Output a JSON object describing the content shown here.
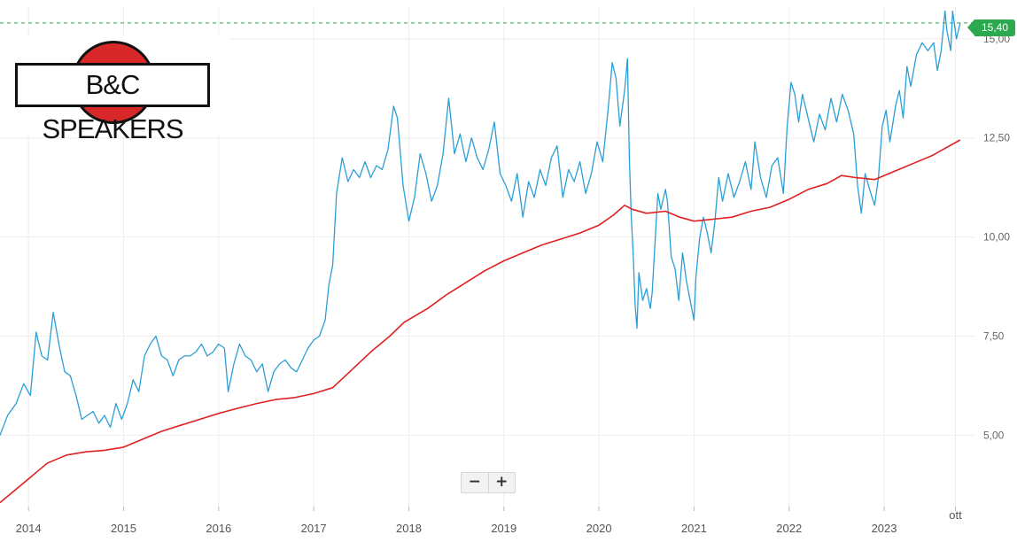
{
  "logo": {
    "text": "B&C SPEAKERS"
  },
  "zoom": {
    "minus_label": "−",
    "plus_label": "+"
  },
  "last_price_label": "15,40",
  "colors": {
    "price_line": "#2b9ed6",
    "moving_average": "#e02020",
    "last_price_dashed": "#2ca94f",
    "grid": "#eeeeee"
  },
  "chart_data": {
    "type": "line",
    "title": "",
    "xlabel": "",
    "ylabel": "",
    "ylim": [
      3.2,
      15.8
    ],
    "xlim": [
      2013.7,
      2023.95
    ],
    "y_ticks": [
      5,
      7.5,
      10,
      12.5,
      15
    ],
    "y_tick_labels": [
      "5,00",
      "7,50",
      "10,00",
      "12,50",
      "15,00"
    ],
    "x_ticks": [
      2014,
      2015,
      2016,
      2017,
      2018,
      2019,
      2020,
      2021,
      2022,
      2023,
      2023.75
    ],
    "x_tick_labels": [
      "2014",
      "2015",
      "2016",
      "2017",
      "2018",
      "2019",
      "2020",
      "2021",
      "2022",
      "2023",
      "ott"
    ],
    "grid": true,
    "last_price": 15.4,
    "series": [
      {
        "name": "",
        "color": "#2b9ed6",
        "points": [
          [
            2013.7,
            5.0
          ],
          [
            2013.78,
            5.5
          ],
          [
            2013.87,
            5.8
          ],
          [
            2013.95,
            6.3
          ],
          [
            2014.02,
            6.0
          ],
          [
            2014.08,
            7.6
          ],
          [
            2014.14,
            7.0
          ],
          [
            2014.2,
            6.9
          ],
          [
            2014.26,
            8.1
          ],
          [
            2014.32,
            7.3
          ],
          [
            2014.38,
            6.6
          ],
          [
            2014.44,
            6.5
          ],
          [
            2014.5,
            6.0
          ],
          [
            2014.56,
            5.4
          ],
          [
            2014.62,
            5.5
          ],
          [
            2014.68,
            5.6
          ],
          [
            2014.74,
            5.3
          ],
          [
            2014.8,
            5.5
          ],
          [
            2014.86,
            5.2
          ],
          [
            2014.92,
            5.8
          ],
          [
            2014.98,
            5.4
          ],
          [
            2015.04,
            5.8
          ],
          [
            2015.1,
            6.4
          ],
          [
            2015.16,
            6.1
          ],
          [
            2015.22,
            7.0
          ],
          [
            2015.28,
            7.3
          ],
          [
            2015.34,
            7.5
          ],
          [
            2015.4,
            7.0
          ],
          [
            2015.46,
            6.9
          ],
          [
            2015.52,
            6.5
          ],
          [
            2015.58,
            6.9
          ],
          [
            2015.64,
            7.0
          ],
          [
            2015.7,
            7.0
          ],
          [
            2015.76,
            7.1
          ],
          [
            2015.82,
            7.3
          ],
          [
            2015.88,
            7.0
          ],
          [
            2015.94,
            7.1
          ],
          [
            2016.0,
            7.3
          ],
          [
            2016.06,
            7.2
          ],
          [
            2016.1,
            6.1
          ],
          [
            2016.16,
            6.8
          ],
          [
            2016.22,
            7.3
          ],
          [
            2016.28,
            7.0
          ],
          [
            2016.34,
            6.9
          ],
          [
            2016.4,
            6.6
          ],
          [
            2016.46,
            6.8
          ],
          [
            2016.52,
            6.1
          ],
          [
            2016.58,
            6.6
          ],
          [
            2016.64,
            6.8
          ],
          [
            2016.7,
            6.9
          ],
          [
            2016.76,
            6.7
          ],
          [
            2016.82,
            6.6
          ],
          [
            2016.88,
            6.9
          ],
          [
            2016.94,
            7.2
          ],
          [
            2017.0,
            7.4
          ],
          [
            2017.06,
            7.5
          ],
          [
            2017.12,
            7.9
          ],
          [
            2017.16,
            8.8
          ],
          [
            2017.2,
            9.3
          ],
          [
            2017.24,
            11.1
          ],
          [
            2017.3,
            12.0
          ],
          [
            2017.36,
            11.4
          ],
          [
            2017.42,
            11.7
          ],
          [
            2017.48,
            11.5
          ],
          [
            2017.54,
            11.9
          ],
          [
            2017.6,
            11.5
          ],
          [
            2017.66,
            11.8
          ],
          [
            2017.72,
            11.7
          ],
          [
            2017.78,
            12.2
          ],
          [
            2017.84,
            13.3
          ],
          [
            2017.88,
            13.0
          ],
          [
            2017.94,
            11.3
          ],
          [
            2018.0,
            10.4
          ],
          [
            2018.06,
            11.0
          ],
          [
            2018.12,
            12.1
          ],
          [
            2018.18,
            11.6
          ],
          [
            2018.24,
            10.9
          ],
          [
            2018.3,
            11.3
          ],
          [
            2018.36,
            12.1
          ],
          [
            2018.42,
            13.5
          ],
          [
            2018.48,
            12.1
          ],
          [
            2018.54,
            12.6
          ],
          [
            2018.6,
            11.9
          ],
          [
            2018.66,
            12.5
          ],
          [
            2018.72,
            12.0
          ],
          [
            2018.78,
            11.7
          ],
          [
            2018.84,
            12.2
          ],
          [
            2018.9,
            12.9
          ],
          [
            2018.96,
            11.6
          ],
          [
            2019.02,
            11.3
          ],
          [
            2019.08,
            10.9
          ],
          [
            2019.14,
            11.6
          ],
          [
            2019.2,
            10.5
          ],
          [
            2019.26,
            11.4
          ],
          [
            2019.32,
            11.0
          ],
          [
            2019.38,
            11.7
          ],
          [
            2019.44,
            11.3
          ],
          [
            2019.5,
            12.0
          ],
          [
            2019.56,
            12.3
          ],
          [
            2019.62,
            11.0
          ],
          [
            2019.68,
            11.7
          ],
          [
            2019.74,
            11.4
          ],
          [
            2019.8,
            11.9
          ],
          [
            2019.86,
            11.1
          ],
          [
            2019.92,
            11.6
          ],
          [
            2019.98,
            12.4
          ],
          [
            2020.04,
            11.9
          ],
          [
            2020.1,
            13.3
          ],
          [
            2020.14,
            14.4
          ],
          [
            2020.18,
            14.0
          ],
          [
            2020.22,
            12.8
          ],
          [
            2020.27,
            13.7
          ],
          [
            2020.3,
            14.5
          ],
          [
            2020.32,
            12.0
          ],
          [
            2020.34,
            10.5
          ],
          [
            2020.36,
            9.6
          ],
          [
            2020.38,
            8.3
          ],
          [
            2020.4,
            7.7
          ],
          [
            2020.42,
            9.1
          ],
          [
            2020.46,
            8.4
          ],
          [
            2020.5,
            8.7
          ],
          [
            2020.54,
            8.2
          ],
          [
            2020.56,
            8.6
          ],
          [
            2020.6,
            10.3
          ],
          [
            2020.62,
            11.1
          ],
          [
            2020.65,
            10.7
          ],
          [
            2020.7,
            11.2
          ],
          [
            2020.72,
            10.9
          ],
          [
            2020.76,
            9.5
          ],
          [
            2020.8,
            9.2
          ],
          [
            2020.84,
            8.4
          ],
          [
            2020.88,
            9.6
          ],
          [
            2020.92,
            8.9
          ],
          [
            2020.96,
            8.4
          ],
          [
            2021.0,
            7.9
          ],
          [
            2021.02,
            9.0
          ],
          [
            2021.06,
            10.0
          ],
          [
            2021.1,
            10.5
          ],
          [
            2021.14,
            10.1
          ],
          [
            2021.18,
            9.6
          ],
          [
            2021.22,
            10.4
          ],
          [
            2021.26,
            11.5
          ],
          [
            2021.3,
            10.9
          ],
          [
            2021.36,
            11.6
          ],
          [
            2021.42,
            11.0
          ],
          [
            2021.48,
            11.4
          ],
          [
            2021.54,
            11.9
          ],
          [
            2021.6,
            11.2
          ],
          [
            2021.64,
            12.4
          ],
          [
            2021.7,
            11.5
          ],
          [
            2021.76,
            11.0
          ],
          [
            2021.82,
            11.8
          ],
          [
            2021.88,
            12.0
          ],
          [
            2021.94,
            11.1
          ],
          [
            2021.98,
            12.8
          ],
          [
            2022.02,
            13.9
          ],
          [
            2022.06,
            13.6
          ],
          [
            2022.1,
            12.9
          ],
          [
            2022.14,
            13.6
          ],
          [
            2022.2,
            13.0
          ],
          [
            2022.26,
            12.4
          ],
          [
            2022.32,
            13.1
          ],
          [
            2022.38,
            12.7
          ],
          [
            2022.44,
            13.5
          ],
          [
            2022.5,
            12.9
          ],
          [
            2022.56,
            13.6
          ],
          [
            2022.62,
            13.2
          ],
          [
            2022.68,
            12.6
          ],
          [
            2022.72,
            11.3
          ],
          [
            2022.76,
            10.6
          ],
          [
            2022.8,
            11.6
          ],
          [
            2022.86,
            11.1
          ],
          [
            2022.9,
            10.8
          ],
          [
            2022.94,
            11.5
          ],
          [
            2022.98,
            12.8
          ],
          [
            2023.02,
            13.2
          ],
          [
            2023.06,
            12.4
          ],
          [
            2023.12,
            13.3
          ],
          [
            2023.16,
            13.7
          ],
          [
            2023.2,
            13.0
          ],
          [
            2023.24,
            14.3
          ],
          [
            2023.28,
            13.8
          ],
          [
            2023.34,
            14.6
          ],
          [
            2023.4,
            14.9
          ],
          [
            2023.46,
            14.7
          ],
          [
            2023.52,
            14.9
          ],
          [
            2023.56,
            14.2
          ],
          [
            2023.6,
            14.7
          ],
          [
            2023.64,
            15.7
          ],
          [
            2023.66,
            15.2
          ],
          [
            2023.7,
            14.7
          ],
          [
            2023.72,
            15.7
          ],
          [
            2023.76,
            15.0
          ],
          [
            2023.8,
            15.4
          ]
        ]
      },
      {
        "name": "",
        "color": "#e02020",
        "points": [
          [
            2013.7,
            3.3
          ],
          [
            2013.8,
            3.5
          ],
          [
            2013.9,
            3.7
          ],
          [
            2014.0,
            3.9
          ],
          [
            2014.1,
            4.1
          ],
          [
            2014.2,
            4.3
          ],
          [
            2014.3,
            4.4
          ],
          [
            2014.4,
            4.5
          ],
          [
            2014.6,
            4.58
          ],
          [
            2014.8,
            4.62
          ],
          [
            2015.0,
            4.7
          ],
          [
            2015.2,
            4.9
          ],
          [
            2015.4,
            5.1
          ],
          [
            2015.6,
            5.25
          ],
          [
            2015.8,
            5.4
          ],
          [
            2016.0,
            5.55
          ],
          [
            2016.2,
            5.68
          ],
          [
            2016.4,
            5.8
          ],
          [
            2016.6,
            5.9
          ],
          [
            2016.8,
            5.95
          ],
          [
            2017.0,
            6.05
          ],
          [
            2017.2,
            6.2
          ],
          [
            2017.4,
            6.65
          ],
          [
            2017.6,
            7.1
          ],
          [
            2017.8,
            7.5
          ],
          [
            2017.95,
            7.85
          ],
          [
            2018.2,
            8.2
          ],
          [
            2018.4,
            8.55
          ],
          [
            2018.6,
            8.85
          ],
          [
            2018.8,
            9.15
          ],
          [
            2019.0,
            9.4
          ],
          [
            2019.2,
            9.6
          ],
          [
            2019.4,
            9.8
          ],
          [
            2019.6,
            9.95
          ],
          [
            2019.8,
            10.1
          ],
          [
            2020.0,
            10.3
          ],
          [
            2020.15,
            10.55
          ],
          [
            2020.27,
            10.8
          ],
          [
            2020.35,
            10.7
          ],
          [
            2020.5,
            10.6
          ],
          [
            2020.7,
            10.65
          ],
          [
            2020.85,
            10.5
          ],
          [
            2021.0,
            10.4
          ],
          [
            2021.2,
            10.45
          ],
          [
            2021.4,
            10.5
          ],
          [
            2021.6,
            10.65
          ],
          [
            2021.8,
            10.75
          ],
          [
            2022.0,
            10.95
          ],
          [
            2022.2,
            11.2
          ],
          [
            2022.4,
            11.35
          ],
          [
            2022.55,
            11.55
          ],
          [
            2022.7,
            11.5
          ],
          [
            2022.9,
            11.45
          ],
          [
            2023.1,
            11.65
          ],
          [
            2023.3,
            11.85
          ],
          [
            2023.5,
            12.05
          ],
          [
            2023.65,
            12.25
          ],
          [
            2023.8,
            12.45
          ]
        ]
      }
    ]
  }
}
